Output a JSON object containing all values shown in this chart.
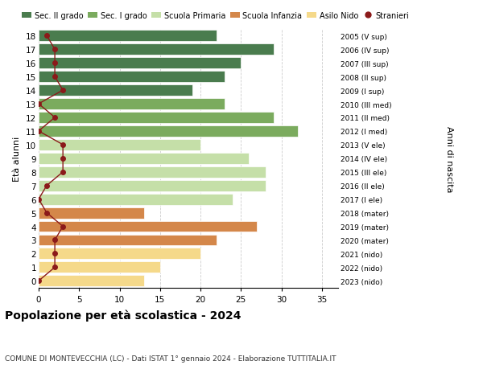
{
  "ages": [
    18,
    17,
    16,
    15,
    14,
    13,
    12,
    11,
    10,
    9,
    8,
    7,
    6,
    5,
    4,
    3,
    2,
    1,
    0
  ],
  "bar_values": [
    22,
    29,
    25,
    23,
    19,
    23,
    29,
    32,
    20,
    26,
    28,
    28,
    24,
    13,
    27,
    22,
    20,
    15,
    13
  ],
  "bar_colors": [
    "#4a7c4e",
    "#4a7c4e",
    "#4a7c4e",
    "#4a7c4e",
    "#4a7c4e",
    "#7bab5e",
    "#7bab5e",
    "#7bab5e",
    "#c5dfa8",
    "#c5dfa8",
    "#c5dfa8",
    "#c5dfa8",
    "#c5dfa8",
    "#d4874a",
    "#d4874a",
    "#d4874a",
    "#f5d98a",
    "#f5d98a",
    "#f5d98a"
  ],
  "stranieri_values": [
    1,
    2,
    2,
    2,
    3,
    0,
    2,
    0,
    3,
    3,
    3,
    1,
    0,
    1,
    3,
    2,
    2,
    2,
    0
  ],
  "right_labels": [
    "2005 (V sup)",
    "2006 (IV sup)",
    "2007 (III sup)",
    "2008 (II sup)",
    "2009 (I sup)",
    "2010 (III med)",
    "2011 (II med)",
    "2012 (I med)",
    "2013 (V ele)",
    "2014 (IV ele)",
    "2015 (III ele)",
    "2016 (II ele)",
    "2017 (I ele)",
    "2018 (mater)",
    "2019 (mater)",
    "2020 (mater)",
    "2021 (nido)",
    "2022 (nido)",
    "2023 (nido)"
  ],
  "legend_labels": [
    "Sec. II grado",
    "Sec. I grado",
    "Scuola Primaria",
    "Scuola Infanzia",
    "Asilo Nido",
    "Stranieri"
  ],
  "legend_colors": [
    "#4a7c4e",
    "#7bab5e",
    "#c5dfa8",
    "#d4874a",
    "#f5d98a",
    "#8b1a1a"
  ],
  "xlabel_values": [
    0,
    5,
    10,
    15,
    20,
    25,
    30,
    35
  ],
  "xlim": [
    0,
    37
  ],
  "title": "Popolazione per età scolastica - 2024",
  "subtitle": "COMUNE DI MONTEVECCHIA (LC) - Dati ISTAT 1° gennaio 2024 - Elaborazione TUTTITALIA.IT",
  "ylabel_left": "Età alunni",
  "ylabel_right": "Anni di nascita",
  "bar_height": 0.82,
  "bg_color": "#ffffff",
  "grid_color": "#cccccc"
}
